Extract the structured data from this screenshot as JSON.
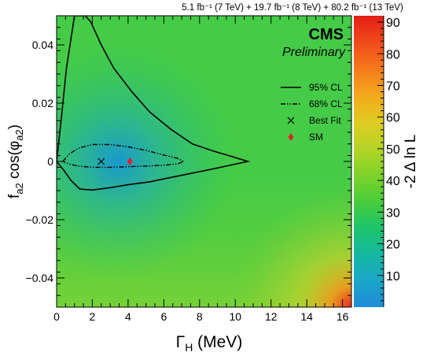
{
  "chart_data": {
    "type": "heatmap",
    "lumi_label": "5.1 fb⁻¹ (7 TeV) + 19.7 fb⁻¹ (8 TeV) + 80.2 fb⁻¹ (13 TeV)",
    "experiment": "CMS",
    "status": "Preliminary",
    "xlabel": "Γ_H (MeV)",
    "ylabel": "f_a2 cos(φ_a2)",
    "zlabel": "-2 Δ ln L",
    "xlim": [
      0,
      16.5
    ],
    "ylim": [
      -0.05,
      0.05
    ],
    "zlim": [
      0,
      92
    ],
    "x_ticks": [
      0,
      2,
      4,
      6,
      8,
      10,
      12,
      14,
      16
    ],
    "y_ticks": [
      -0.04,
      -0.02,
      0,
      0.02,
      0.04
    ],
    "y_tick_labels": [
      "−0.04",
      "−0.02",
      "0",
      "0.02",
      "0.04"
    ],
    "z_ticks": [
      10,
      20,
      30,
      40,
      50,
      60,
      70,
      80,
      90
    ],
    "legend_position": "right",
    "legend": [
      {
        "key": "cl95",
        "label": "95% CL",
        "style": "solid"
      },
      {
        "key": "cl68",
        "label": "68% CL",
        "style": "dash-dot"
      },
      {
        "key": "best_fit",
        "label": "Best Fit",
        "marker": "x"
      },
      {
        "key": "sm",
        "label": "SM",
        "marker": "diamond",
        "color": "#e0202a"
      }
    ],
    "best_fit": {
      "x": 2.5,
      "y": 0.0
    },
    "sm_point": {
      "x": 4.1,
      "y": 0.0
    },
    "contour_95": [
      [
        0.0,
        0.0
      ],
      [
        0.25,
        0.014
      ],
      [
        0.55,
        0.032
      ],
      [
        0.9,
        0.046
      ],
      [
        1.0,
        0.05
      ],
      [
        1.6,
        0.05
      ],
      [
        1.9,
        0.048
      ],
      [
        2.5,
        0.04
      ],
      [
        3.2,
        0.032
      ],
      [
        4.2,
        0.024
      ],
      [
        5.2,
        0.017
      ],
      [
        6.4,
        0.011
      ],
      [
        7.6,
        0.006
      ],
      [
        8.8,
        0.0035
      ],
      [
        9.9,
        0.0015
      ],
      [
        10.7,
        0.0
      ],
      [
        9.8,
        -0.0012
      ],
      [
        8.8,
        -0.0025
      ],
      [
        7.6,
        -0.004
      ],
      [
        6.4,
        -0.0055
      ],
      [
        5.2,
        -0.007
      ],
      [
        4.0,
        -0.008
      ],
      [
        3.0,
        -0.009
      ],
      [
        2.0,
        -0.0098
      ],
      [
        1.3,
        -0.0095
      ],
      [
        0.8,
        -0.0065
      ],
      [
        0.4,
        -0.003
      ],
      [
        0.0,
        0.0
      ]
    ],
    "contour_68": [
      [
        0.35,
        0.0
      ],
      [
        0.7,
        0.0025
      ],
      [
        1.2,
        0.0045
      ],
      [
        2.0,
        0.0058
      ],
      [
        3.0,
        0.0058
      ],
      [
        4.0,
        0.005
      ],
      [
        5.0,
        0.0038
      ],
      [
        6.0,
        0.0022
      ],
      [
        6.8,
        0.001
      ],
      [
        7.1,
        0.0
      ],
      [
        6.8,
        -0.0008
      ],
      [
        6.0,
        -0.0013
      ],
      [
        5.0,
        -0.0016
      ],
      [
        4.0,
        -0.0018
      ],
      [
        3.0,
        -0.002
      ],
      [
        2.0,
        -0.002
      ],
      [
        1.2,
        -0.0016
      ],
      [
        0.7,
        -0.0009
      ],
      [
        0.35,
        0.0
      ]
    ],
    "colors": {
      "scale": [
        "#1f8bd8",
        "#1aa6c8",
        "#16b8a0",
        "#1dc46a",
        "#49cd3a",
        "#7fd32b",
        "#b5d427",
        "#e0cc22",
        "#f3a81d",
        "#f57a1b",
        "#f04a1a",
        "#e41e18"
      ],
      "contour": "#000000",
      "sm_marker": "#e0202a",
      "frame": "#000000"
    }
  }
}
